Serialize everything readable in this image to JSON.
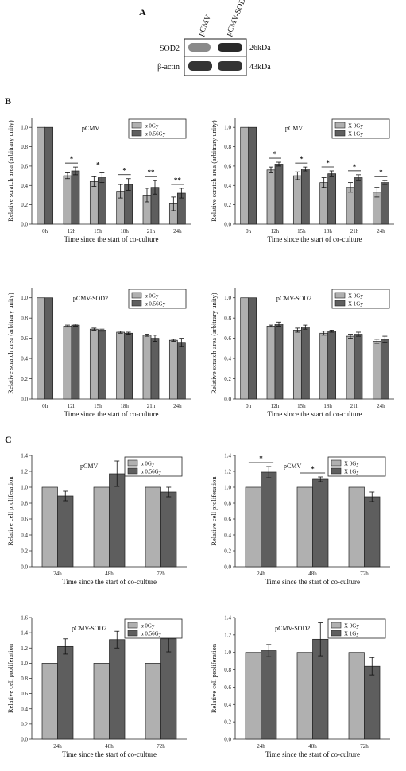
{
  "panel_labels": {
    "a": "A",
    "b": "B",
    "c": "C"
  },
  "blot": {
    "lanes": [
      "pCMV",
      "pCMV-SOD2"
    ],
    "rows": [
      {
        "protein": "SOD2",
        "size": "26kDa",
        "intensity": [
          0.45,
          0.9
        ]
      },
      {
        "protein": "β-actin",
        "size": "43kDa",
        "intensity": [
          0.85,
          0.85
        ]
      }
    ]
  },
  "colors": {
    "control": "#b0b0b0",
    "treated": "#5e5e5e"
  },
  "chart_data": [
    {
      "type": "bar",
      "title": "pCMV",
      "xlabel": "Time since the start of co-culture",
      "ylabel": "Relative scratch area (arbitrary unity)",
      "ylim": [
        0,
        1.1
      ],
      "yticks": [
        0.0,
        0.2,
        0.4,
        0.6,
        0.8,
        1.0
      ],
      "categories": [
        "0h",
        "12h",
        "15h",
        "18h",
        "21h",
        "24h"
      ],
      "series": [
        {
          "name": "α 0Gy",
          "values": [
            1.0,
            0.5,
            0.44,
            0.34,
            0.3,
            0.21
          ],
          "errors": [
            0,
            0.03,
            0.05,
            0.07,
            0.07,
            0.07
          ]
        },
        {
          "name": "α 0.56Gy",
          "values": [
            1.0,
            0.55,
            0.48,
            0.41,
            0.38,
            0.32
          ],
          "errors": [
            0,
            0.04,
            0.05,
            0.06,
            0.07,
            0.05
          ]
        }
      ],
      "significance": [
        "",
        "*",
        "*",
        "*",
        "**",
        "**"
      ],
      "legend": "top-right"
    },
    {
      "type": "bar",
      "title": "pCMV",
      "xlabel": "Time since the start of co-culture",
      "ylabel": "Relative scratch area (arbitrary unity)",
      "ylim": [
        0,
        1.1
      ],
      "yticks": [
        0.0,
        0.2,
        0.4,
        0.6,
        0.8,
        1.0
      ],
      "categories": [
        "0h",
        "12h",
        "15h",
        "18h",
        "21h",
        "24h"
      ],
      "series": [
        {
          "name": "X 0Gy",
          "values": [
            1.0,
            0.56,
            0.5,
            0.43,
            0.38,
            0.33
          ],
          "errors": [
            0,
            0.03,
            0.04,
            0.05,
            0.05,
            0.05
          ]
        },
        {
          "name": "X 1Gy",
          "values": [
            1.0,
            0.62,
            0.57,
            0.52,
            0.48,
            0.43
          ],
          "errors": [
            0,
            0.02,
            0.02,
            0.03,
            0.03,
            0.02
          ]
        }
      ],
      "significance": [
        "",
        "*",
        "*",
        "*",
        "*",
        "*"
      ],
      "legend": "top-right"
    },
    {
      "type": "bar",
      "title": "pCMV-SOD2",
      "xlabel": "Time since the start of co-culture",
      "ylabel": "Relative scratch area (arbitrary unity)",
      "ylim": [
        0,
        1.1
      ],
      "yticks": [
        0.0,
        0.2,
        0.4,
        0.6,
        0.8,
        1.0
      ],
      "categories": [
        "0h",
        "12h",
        "15h",
        "18h",
        "21h",
        "24h"
      ],
      "series": [
        {
          "name": "α 0Gy",
          "values": [
            1.0,
            0.72,
            0.69,
            0.66,
            0.63,
            0.58
          ],
          "errors": [
            0,
            0.01,
            0.01,
            0.01,
            0.01,
            0.01
          ]
        },
        {
          "name": "α 0.56Gy",
          "values": [
            1.0,
            0.73,
            0.68,
            0.65,
            0.6,
            0.56
          ],
          "errors": [
            0,
            0.01,
            0.01,
            0.01,
            0.03,
            0.04
          ]
        }
      ],
      "significance": [
        "",
        "",
        "",
        "",
        "",
        ""
      ],
      "legend": "top-right"
    },
    {
      "type": "bar",
      "title": "pCMV-SOD2",
      "xlabel": "Time since the start of co-culture",
      "ylabel": "Relative scratch area (arbitrary unity)",
      "ylim": [
        0,
        1.1
      ],
      "yticks": [
        0.0,
        0.2,
        0.4,
        0.6,
        0.8,
        1.0
      ],
      "categories": [
        "0h",
        "12h",
        "15h",
        "18h",
        "21h",
        "24h"
      ],
      "series": [
        {
          "name": "X 0Gy",
          "values": [
            1.0,
            0.72,
            0.68,
            0.65,
            0.62,
            0.57
          ],
          "errors": [
            0,
            0.01,
            0.02,
            0.02,
            0.02,
            0.02
          ]
        },
        {
          "name": "X 1Gy",
          "values": [
            1.0,
            0.74,
            0.71,
            0.67,
            0.64,
            0.59
          ],
          "errors": [
            0,
            0.02,
            0.02,
            0.01,
            0.02,
            0.03
          ]
        }
      ],
      "significance": [
        "",
        "",
        "",
        "",
        "",
        ""
      ],
      "legend": "top-right"
    },
    {
      "type": "bar",
      "title": "pCMV",
      "xlabel": "Time since the start of co-culture",
      "ylabel": "Relative cell proliferation",
      "ylim": [
        0,
        1.4
      ],
      "yticks": [
        0.0,
        0.2,
        0.4,
        0.6,
        0.8,
        1.0,
        1.2,
        1.4
      ],
      "categories": [
        "24h",
        "48h",
        "72h"
      ],
      "series": [
        {
          "name": "α 0Gy",
          "values": [
            1.0,
            1.0,
            1.0
          ],
          "errors": [
            0,
            0,
            0
          ]
        },
        {
          "name": "α 0.56Gy",
          "values": [
            0.89,
            1.17,
            0.94
          ],
          "errors": [
            0.06,
            0.16,
            0.06
          ]
        }
      ],
      "significance": [
        "",
        "",
        ""
      ],
      "legend": "top-right"
    },
    {
      "type": "bar",
      "title": "pCMV",
      "xlabel": "Time since the start of co-culture",
      "ylabel": "Relative cell proliferation",
      "ylim": [
        0,
        1.4
      ],
      "yticks": [
        0.0,
        0.2,
        0.4,
        0.6,
        0.8,
        1.0,
        1.2,
        1.4
      ],
      "categories": [
        "24h",
        "48h",
        "72h"
      ],
      "series": [
        {
          "name": "X 0Gy",
          "values": [
            1.0,
            1.0,
            1.0
          ],
          "errors": [
            0,
            0,
            0
          ]
        },
        {
          "name": "X 1Gy",
          "values": [
            1.19,
            1.1,
            0.88
          ],
          "errors": [
            0.07,
            0.03,
            0.06
          ]
        }
      ],
      "significance": [
        "*",
        "*",
        ""
      ],
      "legend": "top-right"
    },
    {
      "type": "bar",
      "title": "pCMV-SOD2",
      "xlabel": "Time since the start of co-culture",
      "ylabel": "Relative cell proliferation",
      "ylim": [
        0,
        1.6
      ],
      "yticks": [
        0.0,
        0.2,
        0.4,
        0.6,
        0.8,
        1.0,
        1.2,
        1.4,
        1.6
      ],
      "categories": [
        "24h",
        "48h",
        "72h"
      ],
      "series": [
        {
          "name": "α 0Gy",
          "values": [
            1.0,
            1.0,
            1.0
          ],
          "errors": [
            0,
            0,
            0
          ]
        },
        {
          "name": "α 0.56Gy",
          "values": [
            1.22,
            1.31,
            1.32
          ],
          "errors": [
            0.1,
            0.11,
            0.17
          ]
        }
      ],
      "significance": [
        "",
        "",
        ""
      ],
      "legend": "top-right"
    },
    {
      "type": "bar",
      "title": "pCMV-SOD2",
      "xlabel": "Time since the start of co-culture",
      "ylabel": "Relative cell proliferation",
      "ylim": [
        0,
        1.4
      ],
      "yticks": [
        0.0,
        0.2,
        0.4,
        0.6,
        0.8,
        1.0,
        1.2,
        1.4
      ],
      "categories": [
        "24h",
        "48h",
        "72h"
      ],
      "series": [
        {
          "name": "X 0Gy",
          "values": [
            1.0,
            1.0,
            1.0
          ],
          "errors": [
            0,
            0,
            0
          ]
        },
        {
          "name": "X 1Gy",
          "values": [
            1.02,
            1.15,
            0.84
          ],
          "errors": [
            0.07,
            0.19,
            0.1
          ]
        }
      ],
      "significance": [
        "",
        "",
        ""
      ],
      "legend": "top-right"
    }
  ]
}
